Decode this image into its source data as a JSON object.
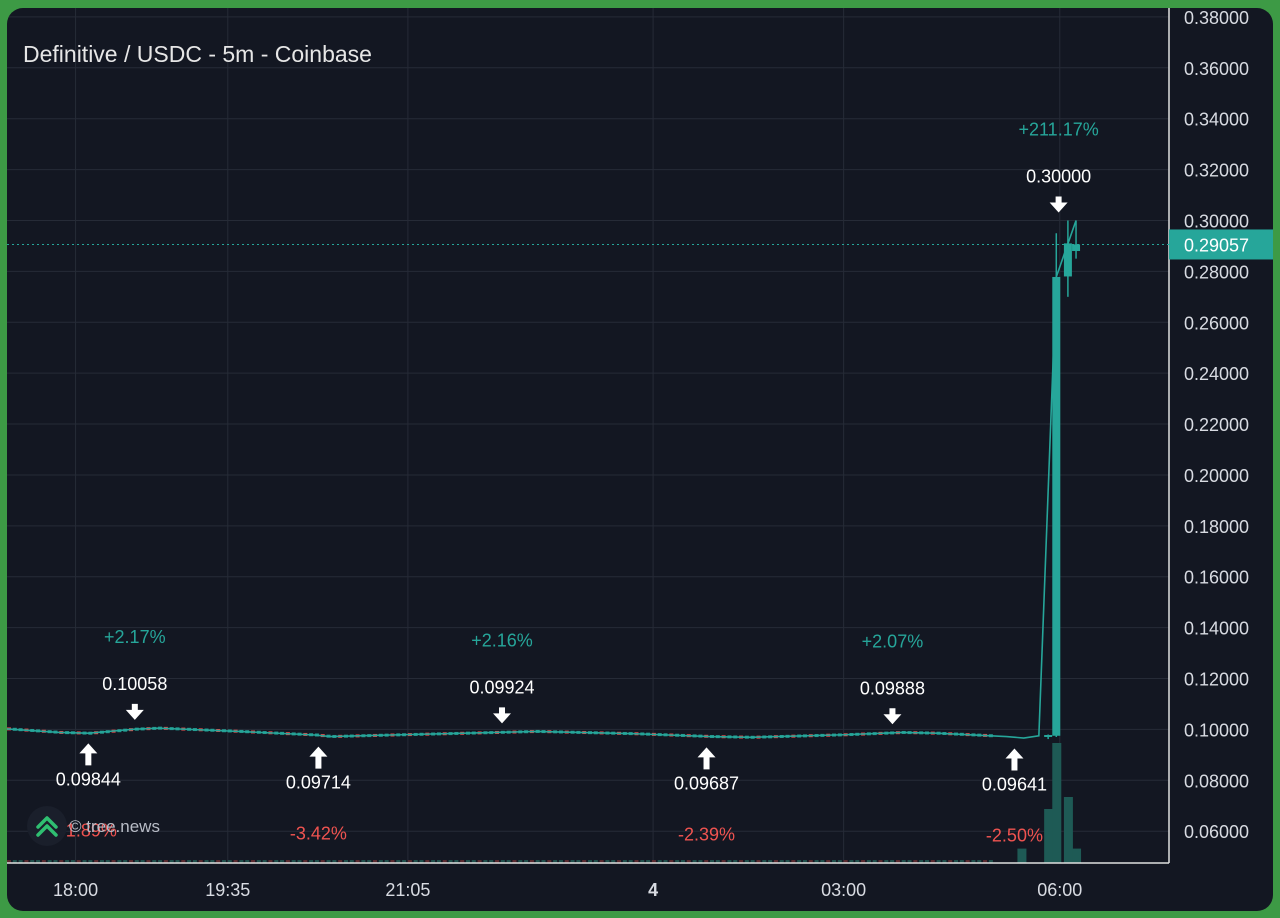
{
  "title": "Definitive / USDC - 5m - Coinbase",
  "watermark": "© tree.news",
  "colors": {
    "up": "#26a69a",
    "down": "#ef5350",
    "grid": "#262b37",
    "text": "#d8dbe2",
    "label_bg": "#26a69a"
  },
  "chart_data": {
    "type": "candlestick",
    "title": "Definitive / USDC - 5m - Coinbase",
    "y_ticks": [
      "0.38000",
      "0.36000",
      "0.34000",
      "0.32000",
      "0.30000",
      "0.28000",
      "0.26000",
      "0.24000",
      "0.22000",
      "0.20000",
      "0.18000",
      "0.16000",
      "0.14000",
      "0.12000",
      "0.10000",
      "0.08000",
      "0.06000"
    ],
    "x_ticks": [
      "18:00",
      "19:35",
      "21:05",
      "4",
      "03:00",
      "06:00"
    ],
    "ylim": [
      0.0475,
      0.3835
    ],
    "last_price": "0.29057",
    "last_price_value": 0.29057,
    "line": [
      {
        "x": 0,
        "y": 0.1002
      },
      {
        "x": 0.045,
        "y": 0.0988
      },
      {
        "x": 0.07,
        "y": 0.0985
      },
      {
        "x": 0.11,
        "y": 0.1001
      },
      {
        "x": 0.13,
        "y": 0.1005
      },
      {
        "x": 0.2,
        "y": 0.0992
      },
      {
        "x": 0.265,
        "y": 0.0978
      },
      {
        "x": 0.278,
        "y": 0.0972
      },
      {
        "x": 0.33,
        "y": 0.0978
      },
      {
        "x": 0.42,
        "y": 0.0988
      },
      {
        "x": 0.455,
        "y": 0.0992
      },
      {
        "x": 0.54,
        "y": 0.0983
      },
      {
        "x": 0.605,
        "y": 0.0972
      },
      {
        "x": 0.64,
        "y": 0.0969
      },
      {
        "x": 0.72,
        "y": 0.0979
      },
      {
        "x": 0.77,
        "y": 0.0988
      },
      {
        "x": 0.8,
        "y": 0.0985
      },
      {
        "x": 0.86,
        "y": 0.0972
      },
      {
        "x": 0.875,
        "y": 0.0966
      },
      {
        "x": 0.888,
        "y": 0.0975
      },
      {
        "x": 0.903,
        "y": 0.2778
      },
      {
        "x": 0.91,
        "y": 0.287
      },
      {
        "x": 0.92,
        "y": 0.3
      }
    ],
    "candles": [
      {
        "x": 0.896,
        "open": 0.0975,
        "high": 0.098,
        "low": 0.0962,
        "close": 0.0978
      },
      {
        "x": 0.903,
        "open": 0.0975,
        "high": 0.295,
        "low": 0.097,
        "close": 0.2778
      },
      {
        "x": 0.913,
        "open": 0.278,
        "high": 0.3,
        "low": 0.27,
        "close": 0.291
      },
      {
        "x": 0.92,
        "open": 0.288,
        "high": 0.3,
        "low": 0.285,
        "close": 0.2906
      }
    ],
    "volume": [
      {
        "x": 0.873,
        "v": 0.12
      },
      {
        "x": 0.896,
        "v": 0.45
      },
      {
        "x": 0.903,
        "v": 1.0
      },
      {
        "x": 0.913,
        "v": 0.55
      },
      {
        "x": 0.92,
        "v": 0.12
      }
    ],
    "annotations": [
      {
        "kind": "high",
        "x": 0.11,
        "price": "0.10058",
        "pct": "+2.17%",
        "value": 0.10058
      },
      {
        "kind": "low",
        "x": 0.07,
        "price": "0.09844",
        "pct": "-1.89%",
        "value": 0.09844
      },
      {
        "kind": "low",
        "x": 0.268,
        "price": "0.09714",
        "pct": "-3.42%",
        "value": 0.09714
      },
      {
        "kind": "high",
        "x": 0.426,
        "price": "0.09924",
        "pct": "+2.16%",
        "value": 0.09924
      },
      {
        "kind": "low",
        "x": 0.602,
        "price": "0.09687",
        "pct": "-2.39%",
        "value": 0.09687
      },
      {
        "kind": "high",
        "x": 0.762,
        "price": "0.09888",
        "pct": "+2.07%",
        "value": 0.09888
      },
      {
        "kind": "low",
        "x": 0.867,
        "price": "0.09641",
        "pct": "-2.50%",
        "value": 0.09641
      },
      {
        "kind": "high",
        "x": 0.905,
        "price": "0.30000",
        "pct": "+211.17%",
        "value": 0.3
      }
    ]
  }
}
